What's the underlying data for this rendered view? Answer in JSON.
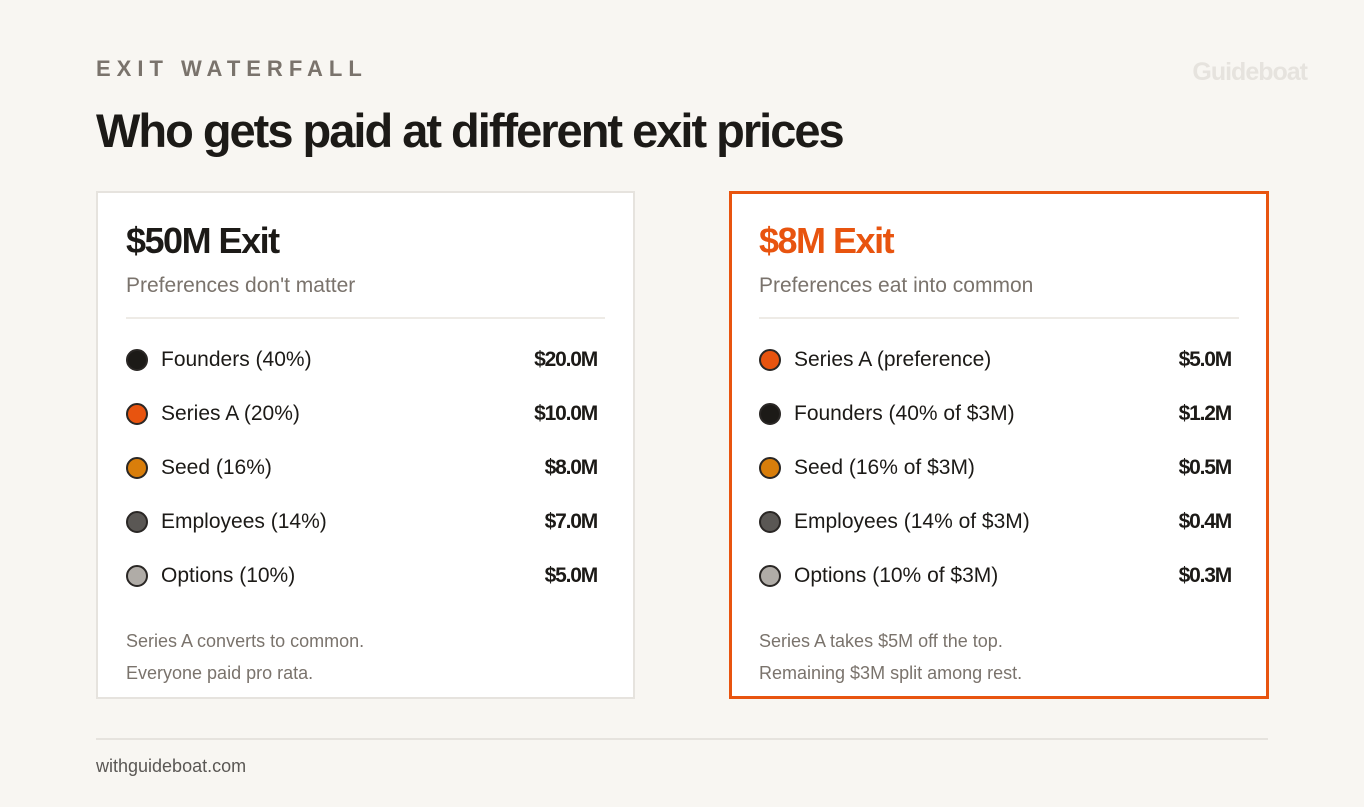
{
  "header": {
    "eyebrow": "EXIT WATERFALL",
    "title": "Who gets paid at different exit prices",
    "brand": "Guideboat"
  },
  "colors": {
    "accent": "#e8540f",
    "founders": "#1c1a17",
    "series_a": "#e8540f",
    "seed": "#d97e0b",
    "employees": "#5a5754",
    "options": "#b0aca7"
  },
  "cards": [
    {
      "title": "$50M Exit",
      "subtitle": "Preferences don't matter",
      "rows": [
        {
          "label": "Founders (40%)",
          "value": "$20.0M",
          "color": "#1c1a17"
        },
        {
          "label": "Series A (20%)",
          "value": "$10.0M",
          "color": "#e8540f"
        },
        {
          "label": "Seed (16%)",
          "value": "$8.0M",
          "color": "#d97e0b"
        },
        {
          "label": "Employees (14%)",
          "value": "$7.0M",
          "color": "#5a5754"
        },
        {
          "label": "Options (10%)",
          "value": "$5.0M",
          "color": "#b0aca7"
        }
      ],
      "note": [
        "Series A converts to common.",
        "Everyone paid pro rata."
      ]
    },
    {
      "title": "$8M Exit",
      "subtitle": "Preferences eat into common",
      "highlighted": true,
      "rows": [
        {
          "label": "Series A (preference)",
          "value": "$5.0M",
          "color": "#e8540f"
        },
        {
          "label": "Founders (40% of $3M)",
          "value": "$1.2M",
          "color": "#1c1a17"
        },
        {
          "label": "Seed (16% of $3M)",
          "value": "$0.5M",
          "color": "#d97e0b"
        },
        {
          "label": "Employees (14% of $3M)",
          "value": "$0.4M",
          "color": "#5a5754"
        },
        {
          "label": "Options (10% of $3M)",
          "value": "$0.3M",
          "color": "#b0aca7"
        }
      ],
      "note": [
        "Series A takes $5M off the top.",
        "Remaining $3M split among rest."
      ]
    }
  ],
  "footer": {
    "url": "withguideboat.com"
  }
}
